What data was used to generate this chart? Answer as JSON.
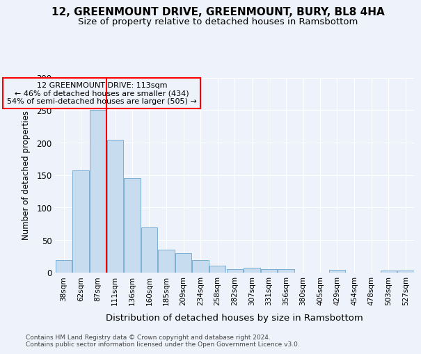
{
  "title": "12, GREENMOUNT DRIVE, GREENMOUNT, BURY, BL8 4HA",
  "subtitle": "Size of property relative to detached houses in Ramsbottom",
  "xlabel": "Distribution of detached houses by size in Ramsbottom",
  "ylabel": "Number of detached properties",
  "categories": [
    "38sqm",
    "62sqm",
    "87sqm",
    "111sqm",
    "136sqm",
    "160sqm",
    "185sqm",
    "209sqm",
    "234sqm",
    "258sqm",
    "282sqm",
    "307sqm",
    "331sqm",
    "356sqm",
    "380sqm",
    "405sqm",
    "429sqm",
    "454sqm",
    "478sqm",
    "503sqm",
    "527sqm"
  ],
  "values": [
    19,
    157,
    250,
    204,
    145,
    69,
    35,
    29,
    19,
    10,
    5,
    7,
    5,
    5,
    0,
    0,
    4,
    0,
    0,
    3,
    3
  ],
  "bar_color": "#c8dcf0",
  "bar_edgecolor": "#7aaed0",
  "redline_index": 3,
  "redline_label": "12 GREENMOUNT DRIVE: 113sqm",
  "annotation_line2": "← 46% of detached houses are smaller (434)",
  "annotation_line3": "54% of semi-detached houses are larger (505) →",
  "ylim": [
    0,
    300
  ],
  "yticks": [
    0,
    50,
    100,
    150,
    200,
    250,
    300
  ],
  "background_color": "#eef2fa",
  "grid_color": "#ffffff",
  "footer_line1": "Contains HM Land Registry data © Crown copyright and database right 2024.",
  "footer_line2": "Contains public sector information licensed under the Open Government Licence v3.0."
}
